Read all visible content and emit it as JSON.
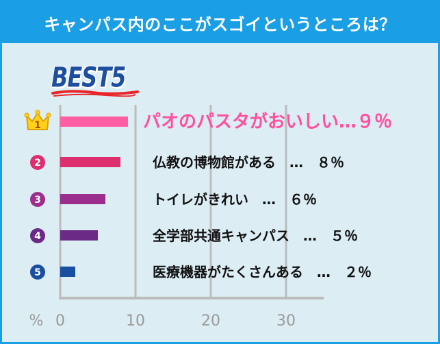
{
  "header": {
    "title": "キャンパス内のここがスゴイというところは？"
  },
  "badge": {
    "text": "BEST5"
  },
  "chart_data": {
    "type": "bar",
    "orientation": "horizontal",
    "categories": [
      "パオのパスタがおいしい",
      "仏教の博物館がある",
      "トイレがきれい",
      "全学部共通キャンパス",
      "医療機器がたくさんある"
    ],
    "ranks": [
      "1",
      "2",
      "3",
      "4",
      "5"
    ],
    "values": [
      9,
      8,
      6,
      5,
      2
    ],
    "labels": [
      "パオのパスタがおいしい…９％",
      "仏教の博物館がある　…　８％",
      "トイレがきれい　…　６％",
      "全学部共通キャンパス　…　５％",
      "医療機器がたくさんある　…　２％"
    ],
    "colors": [
      "#ff5fa2",
      "#dd2f6e",
      "#9c2e8e",
      "#6a2a86",
      "#1a4ea0"
    ],
    "xlabel": "%",
    "xticks": [
      "0",
      "10",
      "20",
      "30"
    ],
    "xlim": [
      0,
      35
    ],
    "grid": true
  }
}
